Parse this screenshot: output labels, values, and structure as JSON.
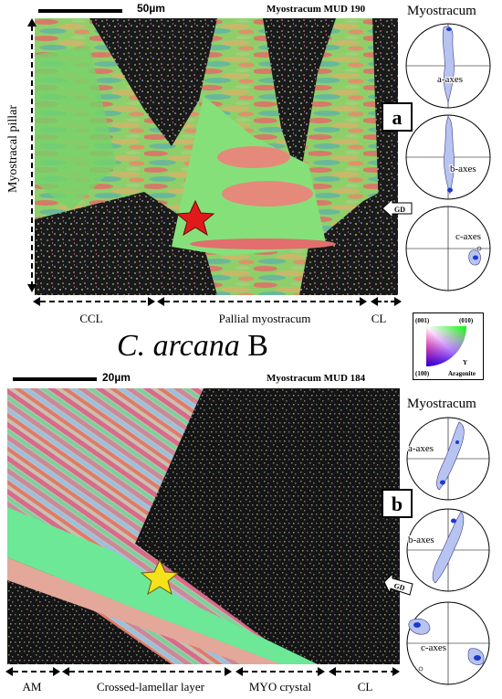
{
  "panel_a": {
    "scale_label": "50µm",
    "map_title": "Myostracum MUD 190",
    "pole_figures_title": "Myostracum",
    "panel_label": "a",
    "axes": [
      "a-axes",
      "b-axes",
      "c-axes"
    ],
    "gd_label": "GD",
    "side_label": "Myostracal pillar",
    "regions": [
      "CCL",
      "Pallial myostracum",
      "CL"
    ]
  },
  "species": {
    "genus": "C. arcana",
    "suffix": " B"
  },
  "ipf_key": {
    "corner_001": "(001)",
    "corner_010": "(010)",
    "corner_100": "(100)",
    "direction": "Y",
    "phase": "Aragonite"
  },
  "panel_b": {
    "scale_label": "20µm",
    "map_title": "Myostracum MUD 184",
    "pole_figures_title": "Myostracum",
    "panel_label": "b",
    "axes": [
      "a-axes",
      "b-axes",
      "c-axes"
    ],
    "gd_label": "GD",
    "regions": [
      "AM",
      "Crossed-lamellar layer",
      "MYO crystal",
      "CL"
    ]
  },
  "colors": {
    "star_a": "#e01a1a",
    "star_b": "#f5e21a",
    "grain_green": "#7fe07a",
    "grain_pink": "#e08a8a",
    "noise_dark": "#141414"
  }
}
